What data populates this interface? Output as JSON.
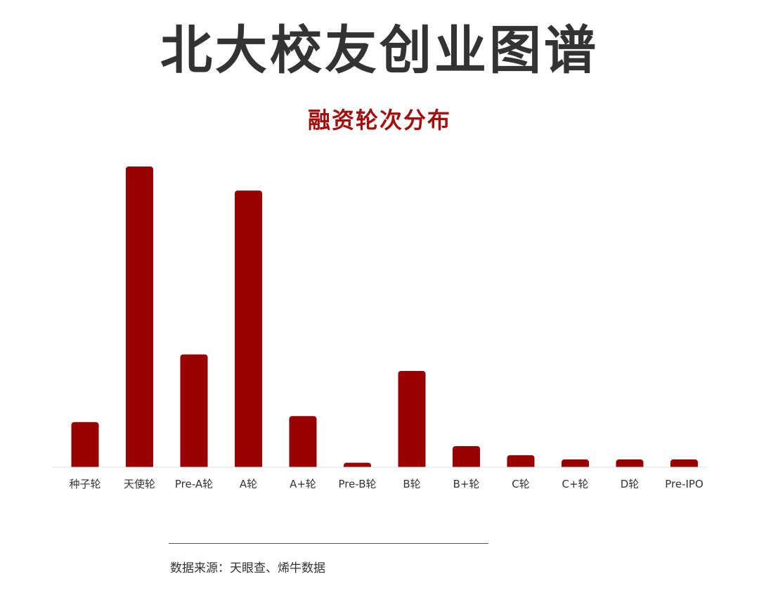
{
  "header": {
    "title": "北大校友创业图谱",
    "subtitle": "融资轮次分布"
  },
  "footer": {
    "source": "数据来源：天眼查、烯牛数据"
  },
  "colors": {
    "bar": "#990000",
    "title": "#333333",
    "subtitle": "#a30f0f",
    "axis": "#dddddd"
  },
  "chart_data": {
    "type": "bar",
    "title": "融资轮次分布",
    "xlabel": "",
    "ylabel": "",
    "grid": false,
    "legend": "none",
    "categories": [
      "种子轮",
      "天使轮",
      "Pre-A轮",
      "A轮",
      "A+轮",
      "Pre-B轮",
      "B轮",
      "B+轮",
      "C轮",
      "C+轮",
      "D轮",
      "Pre-IPO"
    ],
    "values": [
      15,
      100,
      37.5,
      92,
      17,
      1.5,
      32,
      7,
      4,
      2.6,
      2.6,
      2.6
    ],
    "ylim": [
      0,
      100
    ]
  }
}
